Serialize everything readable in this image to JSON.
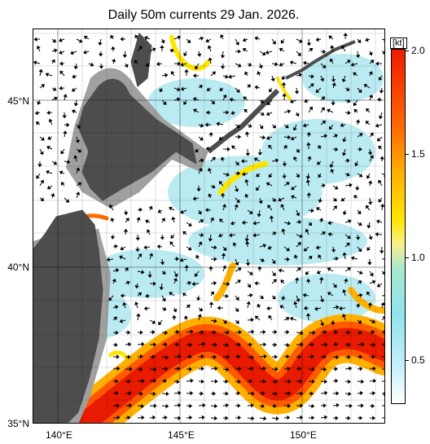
{
  "title": "Daily 50m currents 29 Jan. 2026.",
  "lat_labels": [
    "45°N",
    "40°N",
    "35°N"
  ],
  "lon_labels": [
    "140°E",
    "145°E",
    "150°E"
  ],
  "colorbar": {
    "unit": "[kt]",
    "ticks": [
      "2.0",
      "1.5",
      "1.0",
      "0.5"
    ]
  },
  "colors": {
    "land": "#4d4d4d",
    "shelf": "#a0a0a0",
    "strong": "#e81a00",
    "medium": "#ff8c00",
    "weak": "#ffe600",
    "slow": "#aee8f0"
  }
}
